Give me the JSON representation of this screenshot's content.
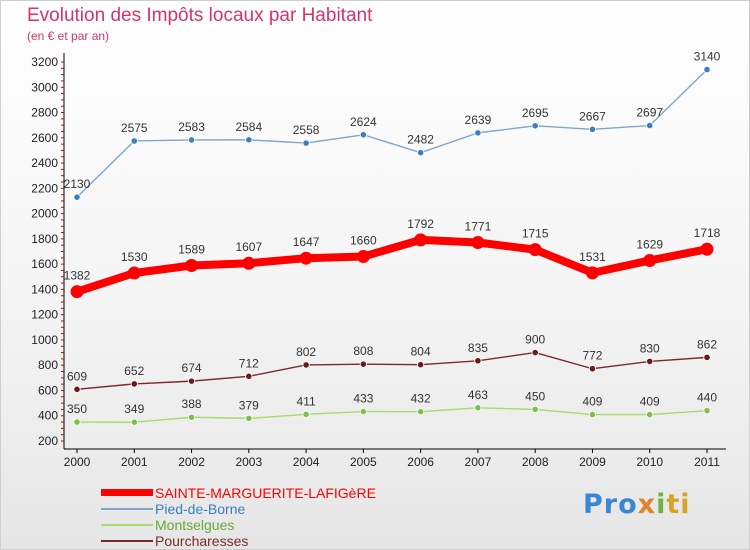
{
  "chart_data": {
    "type": "line",
    "title": "Evolution des Impôts locaux par Habitant",
    "subtitle": "(en € et par an)",
    "categories": [
      "2000",
      "2001",
      "2002",
      "2003",
      "2004",
      "2005",
      "2006",
      "2007",
      "2008",
      "2009",
      "2010",
      "2011"
    ],
    "ylim": [
      200,
      3200
    ],
    "yticks": [
      "200",
      "400",
      "600",
      "800",
      "1000",
      "1200",
      "1400",
      "1600",
      "1800",
      "2000",
      "2200",
      "2400",
      "2600",
      "2800",
      "3000",
      "3200"
    ],
    "grid": false,
    "legend_position": "bottom-left",
    "series": [
      {
        "name": "SAINTE-MARGUERITE-LAFIGèRE",
        "color": "#ff0000",
        "marker_color": "#cc0000",
        "values": [
          1382,
          1530,
          1589,
          1607,
          1647,
          1660,
          1792,
          1771,
          1715,
          1531,
          1629,
          1718
        ],
        "labels": [
          "1382",
          "1530",
          "1589",
          "1607",
          "1647",
          "1660",
          "1792",
          "1771",
          "1715",
          "1531",
          "1629",
          "1718"
        ]
      },
      {
        "name": "Pied-de-Borne",
        "color": "#7ea7cc",
        "marker_color": "#3a7fc0",
        "values": [
          2130,
          2575,
          2583,
          2584,
          2558,
          2624,
          2482,
          2639,
          2695,
          2667,
          2697,
          3140
        ],
        "labels": [
          "2130",
          "2575",
          "2583",
          "2584",
          "2558",
          "2624",
          "2482",
          "2639",
          "2695",
          "2667",
          "2697",
          "3140"
        ]
      },
      {
        "name": "Montselgues",
        "color": "#a4dc6e",
        "marker_color": "#7cc04a",
        "values": [
          350,
          349,
          388,
          379,
          411,
          433,
          432,
          463,
          450,
          409,
          409,
          440
        ],
        "labels": [
          "350",
          "349",
          "388",
          "379",
          "411",
          "433",
          "432",
          "463",
          "450",
          "409",
          "409",
          "440"
        ]
      },
      {
        "name": "Pourcharesses",
        "color": "#7a2a2a",
        "marker_color": "#6a1a1a",
        "values": [
          609,
          652,
          674,
          712,
          802,
          808,
          804,
          835,
          900,
          772,
          830,
          862
        ],
        "labels": [
          "609",
          "652",
          "674",
          "712",
          "802",
          "808",
          "804",
          "835",
          "900",
          "772",
          "830",
          "862"
        ]
      }
    ]
  },
  "logo": {
    "p1": "Pro",
    "p2": "x",
    "p3": "i",
    "p4": "ti"
  }
}
